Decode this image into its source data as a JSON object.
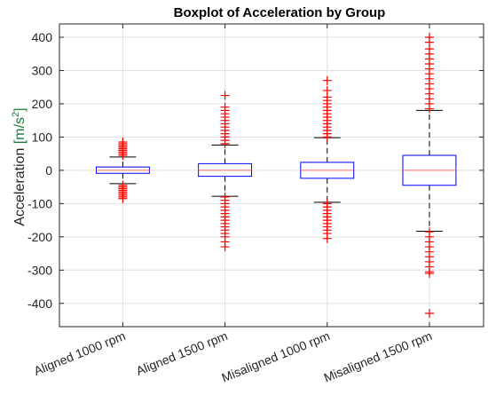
{
  "chart_data": {
    "type": "box",
    "title": "Boxplot of Acceleration by Group",
    "ylabel": "Acceleration",
    "ylabel_unit": "[m/s",
    "ylabel_unit_sup": "2",
    "ylabel_unit_close": "]",
    "ylim": [
      -470,
      440
    ],
    "yticks": [
      -400,
      -300,
      -200,
      -100,
      0,
      100,
      200,
      300,
      400
    ],
    "grid": true,
    "categories": [
      "Aligned 1000 rpm",
      "Aligned 1500 rpm",
      "Misaligned 1000 rpm",
      "Misaligned 1500 rpm"
    ],
    "boxes": [
      {
        "category": "Aligned 1000 rpm",
        "whisker_low": -40,
        "q1": -9,
        "median": 0,
        "q3": 10,
        "whisker_high": 40,
        "outliers_high": [
          45,
          50,
          55,
          60,
          65,
          70,
          75,
          80,
          85
        ],
        "outliers_low": [
          -45,
          -50,
          -55,
          -60,
          -65,
          -70,
          -75,
          -80,
          -85
        ]
      },
      {
        "category": "Aligned 1500 rpm",
        "whisker_low": -78,
        "q1": -18,
        "median": 0,
        "q3": 20,
        "whisker_high": 76,
        "outliers_high": [
          80,
          90,
          100,
          110,
          120,
          130,
          140,
          150,
          160,
          170,
          180,
          190,
          225
        ],
        "outliers_low": [
          -80,
          -90,
          -100,
          -110,
          -120,
          -130,
          -140,
          -150,
          -160,
          -170,
          -180,
          -190,
          -200,
          -215,
          -230
        ]
      },
      {
        "category": "Misaligned 1000 rpm",
        "whisker_low": -96,
        "q1": -24,
        "median": 0,
        "q3": 24,
        "whisker_high": 98,
        "outliers_high": [
          100,
          110,
          120,
          130,
          140,
          150,
          160,
          170,
          180,
          190,
          200,
          210,
          220,
          240,
          270
        ],
        "outliers_low": [
          -100,
          -110,
          -120,
          -130,
          -140,
          -150,
          -160,
          -170,
          -180,
          -190,
          -205
        ]
      },
      {
        "category": "Misaligned 1500 rpm",
        "whisker_low": -183,
        "q1": -45,
        "median": 0,
        "q3": 45,
        "whisker_high": 180,
        "outliers_high": [
          185,
          200,
          215,
          230,
          245,
          260,
          275,
          290,
          305,
          320,
          335,
          350,
          365,
          385,
          400
        ],
        "outliers_low": [
          -185,
          -200,
          -215,
          -230,
          -245,
          -260,
          -275,
          -290,
          -305,
          -310,
          -430
        ]
      }
    ],
    "colors": {
      "box": "#0000ff",
      "median": "#ff6666",
      "whisker": "#000000",
      "outlier": "#ff0000",
      "grid": "#e0e0e0",
      "axis": "#262626"
    }
  }
}
